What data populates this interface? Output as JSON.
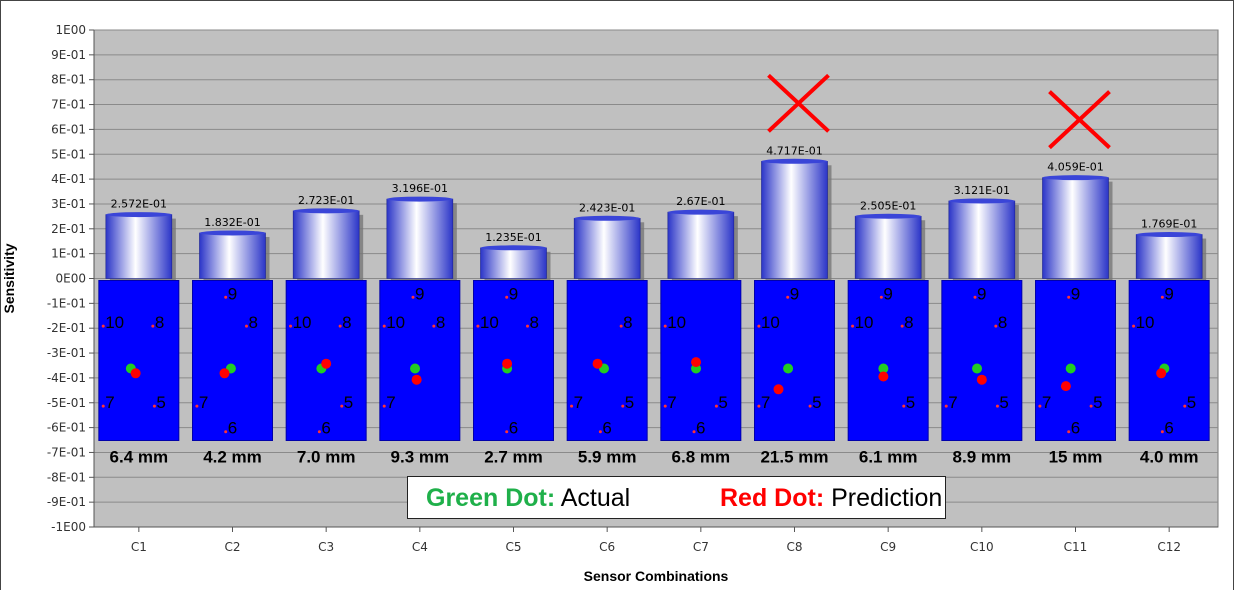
{
  "chart_data": {
    "type": "bar",
    "title": "",
    "xlabel": "Sensor Combinations",
    "ylabel": "Sensitivity",
    "ylim": [
      -1,
      1
    ],
    "yticks": [
      "1E00",
      "9E-01",
      "8E-01",
      "7E-01",
      "6E-01",
      "5E-01",
      "4E-01",
      "3E-01",
      "2E-01",
      "1E-01",
      "0E00",
      "-1E-01",
      "-2E-01",
      "-3E-01",
      "-4E-01",
      "-5E-01",
      "-6E-01",
      "-7E-01",
      "-8E-01",
      "-9E-01",
      "-1E00"
    ],
    "grid": true,
    "categories": [
      "C1",
      "C2",
      "C3",
      "C4",
      "C5",
      "C6",
      "C7",
      "C8",
      "C9",
      "C10",
      "C11",
      "C12"
    ],
    "values": [
      0.2572,
      0.1832,
      0.2723,
      0.3196,
      0.1235,
      0.2423,
      0.267,
      0.4717,
      0.2505,
      0.3121,
      0.4059,
      0.1769
    ],
    "value_labels": [
      "2.572E-01",
      "1.832E-01",
      "2.723E-01",
      "3.196E-01",
      "1.235E-01",
      "2.423E-01",
      "2.67E-01",
      "4.717E-01",
      "2.505E-01",
      "3.121E-01",
      "4.059E-01",
      "1.769E-01"
    ],
    "distances": [
      "6.4 mm",
      "4.2 mm",
      "7.0 mm",
      "9.3 mm",
      "2.7 mm",
      "5.9 mm",
      "6.8 mm",
      "21.5 mm",
      "6.1 mm",
      "8.9 mm",
      "15 mm",
      "4.0 mm"
    ],
    "crossed_out": [
      "C8",
      "C11"
    ],
    "colors": {
      "bar": "#4a55d8",
      "plot_bg": "#c0c0c0",
      "panel": "#0000ff",
      "actual_dot": "#22cc22",
      "prediction_dot": "#ff0000",
      "cross": "#ff0000"
    },
    "sensor_panels": [
      {
        "labels": [
          "10",
          "8",
          "7",
          "5"
        ]
      },
      {
        "labels": [
          "9",
          "8",
          "7",
          "6"
        ]
      },
      {
        "labels": [
          "10",
          "8",
          "5",
          "6"
        ]
      },
      {
        "labels": [
          "10",
          "9",
          "8",
          "7"
        ]
      },
      {
        "labels": [
          "10",
          "9",
          "8",
          "6"
        ]
      },
      {
        "labels": [
          "8",
          "7",
          "5",
          "6"
        ]
      },
      {
        "labels": [
          "10",
          "7",
          "5",
          "6"
        ]
      },
      {
        "labels": [
          "10",
          "9",
          "7",
          "5"
        ]
      },
      {
        "labels": [
          "10",
          "9",
          "8",
          "5"
        ]
      },
      {
        "labels": [
          "9",
          "8",
          "7",
          "5"
        ]
      },
      {
        "labels": [
          "9",
          "7",
          "5",
          "6"
        ]
      },
      {
        "labels": [
          "10",
          "9",
          "5",
          "6"
        ]
      }
    ],
    "legend": {
      "green_label": "Green Dot:",
      "green_text": " Actual",
      "red_label": "Red Dot:",
      "red_text": " Prediction"
    }
  }
}
